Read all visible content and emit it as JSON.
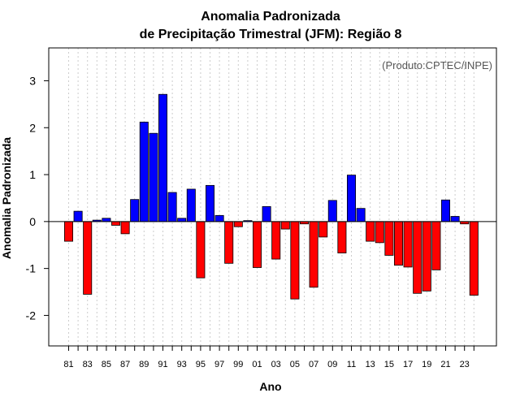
{
  "chart_data": {
    "type": "bar",
    "title": [
      "Anomalia Padronizada",
      "de Precipitação Trimestral (JFM): Região 8"
    ],
    "ylabel": "Anomalia Padronizada",
    "xlabel": "Ano",
    "annotation": "(Produto:CPTEC/INPE)",
    "ylim": [
      -2.65,
      3.7
    ],
    "yticks": [
      -2,
      -1,
      0,
      1,
      2,
      3
    ],
    "grid": true,
    "categories": [
      "81",
      "82",
      "83",
      "84",
      "85",
      "86",
      "87",
      "88",
      "89",
      "90",
      "91",
      "92",
      "93",
      "94",
      "95",
      "96",
      "97",
      "98",
      "99",
      "00",
      "01",
      "02",
      "03",
      "04",
      "05",
      "06",
      "07",
      "08",
      "09",
      "10",
      "11",
      "12",
      "13",
      "14",
      "15",
      "16",
      "17",
      "18",
      "19",
      "20",
      "21",
      "22",
      "23",
      "24"
    ],
    "xtick_labels": [
      "81",
      "83",
      "85",
      "87",
      "89",
      "91",
      "93",
      "95",
      "97",
      "99",
      "01",
      "03",
      "05",
      "07",
      "09",
      "11",
      "13",
      "15",
      "17",
      "19",
      "21",
      "23"
    ],
    "values": [
      -0.42,
      0.22,
      -1.55,
      0.03,
      0.07,
      -0.08,
      -0.26,
      0.47,
      2.12,
      1.88,
      2.71,
      0.62,
      0.07,
      0.69,
      -1.2,
      0.77,
      0.13,
      -0.89,
      -0.11,
      0.02,
      -0.98,
      0.32,
      -0.8,
      -0.16,
      -1.65,
      -0.05,
      -1.4,
      -0.33,
      0.45,
      -0.67,
      0.99,
      0.28,
      -0.42,
      -0.45,
      -0.72,
      -0.93,
      -0.97,
      -1.53,
      -1.48,
      -1.03,
      0.46,
      0.11,
      -0.05,
      -1.57
    ],
    "colors": {
      "positive": "#0000FF",
      "negative": "#FF0000"
    }
  }
}
